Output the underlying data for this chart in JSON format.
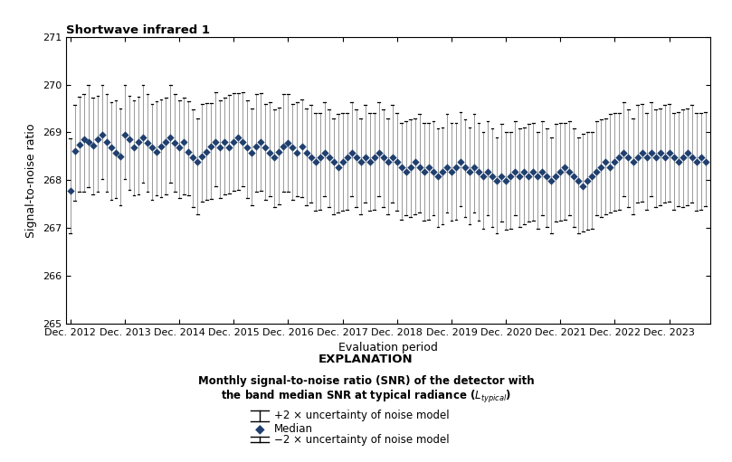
{
  "title": "Shortwave infrared 1",
  "xlabel": "Evaluation period",
  "ylabel": "Signal-to-noise ratio",
  "ylim": [
    265,
    271
  ],
  "yticks": [
    265,
    266,
    267,
    268,
    269,
    270,
    271
  ],
  "x_tick_labels": [
    "Dec. 2012",
    "Dec. 2013",
    "Dec. 2014",
    "Dec. 2015",
    "Dec. 2016",
    "Dec. 2017",
    "Dec. 2018",
    "Dec. 2019",
    "Dec. 2020",
    "Dec. 2021",
    "Dec. 2022",
    "Dec. 2023"
  ],
  "marker_color": "#1F3F6E",
  "errorbar_color": "#999999",
  "cap_color": "#000000",
  "explanation_title": "EXPLANATION",
  "legend_upper": "+2 × uncertainty of noise model",
  "legend_median": "Median",
  "legend_lower": "−2 × uncertainty of noise model",
  "medians": [
    267.78,
    268.62,
    268.75,
    268.85,
    268.8,
    268.72,
    268.85,
    268.95,
    268.8,
    268.68,
    268.58,
    268.5,
    268.95,
    268.85,
    268.68,
    268.8,
    268.9,
    268.78,
    268.68,
    268.6,
    268.7,
    268.8,
    268.9,
    268.78,
    268.68,
    268.8,
    268.6,
    268.48,
    268.38,
    268.5,
    268.6,
    268.7,
    268.8,
    268.68,
    268.8,
    268.68,
    268.8,
    268.9,
    268.8,
    268.68,
    268.58,
    268.7,
    268.8,
    268.68,
    268.58,
    268.48,
    268.6,
    268.7,
    268.78,
    268.68,
    268.58,
    268.7,
    268.58,
    268.48,
    268.38,
    268.48,
    268.58,
    268.48,
    268.38,
    268.28,
    268.38,
    268.48,
    268.58,
    268.48,
    268.38,
    268.48,
    268.38,
    268.48,
    268.58,
    268.48,
    268.38,
    268.48,
    268.38,
    268.28,
    268.18,
    268.28,
    268.38,
    268.28,
    268.18,
    268.28,
    268.18,
    268.08,
    268.18,
    268.28,
    268.18,
    268.28,
    268.38,
    268.28,
    268.18,
    268.28,
    268.18,
    268.08,
    268.18,
    268.08,
    267.98,
    268.08,
    267.98,
    268.08,
    268.18,
    268.08,
    268.18,
    268.08,
    268.18,
    268.08,
    268.18,
    268.08,
    267.98,
    268.08,
    268.18,
    268.28,
    268.18,
    268.08,
    267.98,
    267.88,
    267.98,
    268.08,
    268.18,
    268.28,
    268.38,
    268.28,
    268.38,
    268.48,
    268.58,
    268.48,
    268.38,
    268.48,
    268.58,
    268.48,
    268.58,
    268.48,
    268.58,
    268.48,
    268.58,
    268.48,
    268.38,
    268.48,
    268.58,
    268.48,
    268.38,
    268.48,
    268.38
  ],
  "upper_errors": [
    1.1,
    0.95,
    1.0,
    0.95,
    1.2,
    1.0,
    0.92,
    1.05,
    1.0,
    0.95,
    1.1,
    1.0,
    1.05,
    0.92,
    1.0,
    0.95,
    1.1,
    1.02,
    0.92,
    1.05,
    1.0,
    0.92,
    1.1,
    1.02,
    1.0,
    0.92,
    1.05,
    1.0,
    0.92,
    1.1,
    1.02,
    0.92,
    1.05,
    1.0,
    0.92,
    1.1,
    1.02,
    0.92,
    1.05,
    1.0,
    0.92,
    1.1,
    1.02,
    0.92,
    1.05,
    1.0,
    0.92,
    1.1,
    1.02,
    0.92,
    1.05,
    1.0,
    0.92,
    1.1,
    1.02,
    0.92,
    1.05,
    1.0,
    0.92,
    1.1,
    1.02,
    0.92,
    1.05,
    1.0,
    0.92,
    1.1,
    1.02,
    0.92,
    1.05,
    1.0,
    0.92,
    1.1,
    1.02,
    0.92,
    1.05,
    1.0,
    0.92,
    1.1,
    1.02,
    0.92,
    1.05,
    1.0,
    0.92,
    1.1,
    1.02,
    0.92,
    1.05,
    1.0,
    0.92,
    1.1,
    1.02,
    0.92,
    1.05,
    1.0,
    0.92,
    1.1,
    1.02,
    0.92,
    1.05,
    1.0,
    0.92,
    1.1,
    1.02,
    0.92,
    1.05,
    1.0,
    0.92,
    1.1,
    1.02,
    0.92,
    1.05,
    1.0,
    0.92,
    1.1,
    1.02,
    0.92,
    1.05,
    1.0,
    0.92,
    1.1,
    1.02,
    0.92,
    1.05,
    1.0,
    0.92,
    1.1,
    1.02,
    0.92,
    1.05,
    1.0,
    0.92,
    1.1,
    1.02,
    0.92,
    1.05,
    1.0,
    0.92,
    1.1,
    1.02,
    0.92,
    1.05
  ],
  "lower_errors": [
    0.9,
    1.05,
    1.0,
    1.1,
    0.95,
    1.02,
    1.1,
    0.92,
    1.05,
    1.1,
    0.95,
    1.02,
    0.92,
    1.05,
    1.0,
    1.1,
    0.95,
    1.02,
    1.1,
    0.92,
    1.05,
    1.1,
    0.95,
    1.02,
    1.05,
    1.1,
    0.92,
    1.05,
    1.1,
    0.95,
    1.02,
    1.1,
    0.92,
    1.05,
    1.1,
    0.95,
    1.02,
    1.1,
    0.92,
    1.05,
    1.1,
    0.95,
    1.02,
    1.1,
    0.92,
    1.05,
    1.1,
    0.95,
    1.02,
    1.1,
    0.92,
    1.05,
    1.1,
    0.95,
    1.02,
    1.1,
    0.92,
    1.05,
    1.1,
    0.95,
    1.02,
    1.1,
    0.92,
    1.05,
    1.1,
    0.95,
    1.02,
    1.1,
    0.92,
    1.05,
    1.1,
    0.95,
    1.02,
    1.1,
    0.92,
    1.05,
    1.1,
    0.95,
    1.02,
    1.1,
    0.92,
    1.05,
    1.1,
    0.95,
    1.02,
    1.1,
    0.92,
    1.05,
    1.1,
    0.95,
    1.02,
    1.1,
    0.92,
    1.05,
    1.1,
    0.95,
    1.02,
    1.1,
    0.92,
    1.05,
    1.1,
    0.95,
    1.02,
    1.1,
    0.92,
    1.05,
    1.1,
    0.95,
    1.02,
    1.1,
    0.92,
    1.05,
    1.1,
    0.95,
    1.02,
    1.1,
    0.92,
    1.05,
    1.1,
    0.95,
    1.02,
    1.1,
    0.92,
    1.05,
    1.1,
    0.95,
    1.02,
    1.1,
    0.92,
    1.05,
    1.1,
    0.95,
    1.02,
    1.1,
    0.92,
    1.05,
    1.1,
    0.95,
    1.02,
    1.1,
    0.92
  ]
}
